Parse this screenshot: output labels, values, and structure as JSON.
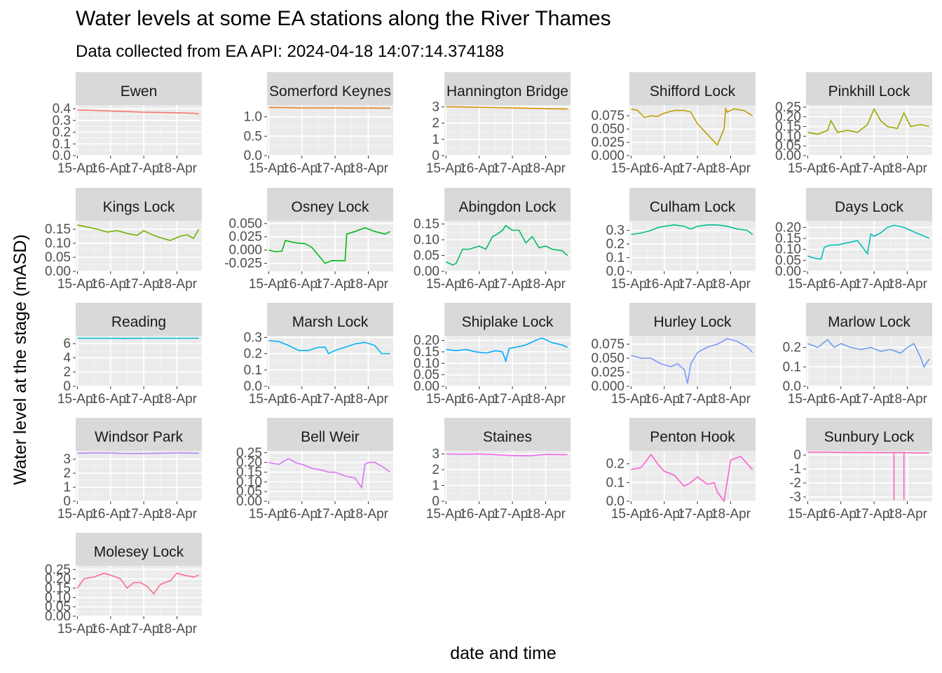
{
  "chart_data": {
    "type": "line",
    "title": "Water levels at some EA stations along the River Thames",
    "subtitle": "Data collected from EA API: 2024-04-18 14:07:14.374188",
    "xlabel": "date and time",
    "ylabel": "Water level at the stage (mASD)",
    "x_ticks": [
      "15-Apr",
      "16-Apr",
      "17-Apr",
      "18-Apr"
    ],
    "x_range_days": [
      14.95,
      18.75
    ],
    "legend": "none",
    "grid": true,
    "panels": [
      {
        "station": "Ewen",
        "color": "#F8766D",
        "ylim": [
          0,
          0.43
        ],
        "yticks": [
          "0.0",
          "0.1",
          "0.2",
          "0.3",
          "0.4"
        ],
        "ytick_values": [
          0,
          0.1,
          0.2,
          0.3,
          0.4
        ],
        "x": [
          15.0,
          15.5,
          16.0,
          16.5,
          17.0,
          17.5,
          18.0,
          18.5,
          18.66
        ],
        "y": [
          0.39,
          0.385,
          0.38,
          0.375,
          0.37,
          0.368,
          0.365,
          0.36,
          0.355
        ]
      },
      {
        "station": "Somerford Keynes",
        "color": "#E9842C",
        "ylim": [
          0,
          1.3
        ],
        "yticks": [
          "0.0",
          "0.5",
          "1.0"
        ],
        "ytick_values": [
          0,
          0.5,
          1.0
        ],
        "x": [
          15.0,
          15.5,
          16.0,
          16.5,
          17.0,
          17.5,
          18.0,
          18.66
        ],
        "y": [
          1.24,
          1.235,
          1.23,
          1.23,
          1.23,
          1.225,
          1.225,
          1.22
        ]
      },
      {
        "station": "Hannington Bridge",
        "color": "#D69100",
        "ylim": [
          0,
          3.1
        ],
        "yticks": [
          "0",
          "1",
          "2",
          "3"
        ],
        "ytick_values": [
          0,
          1,
          2,
          3
        ],
        "x": [
          15.0,
          15.5,
          16.0,
          16.5,
          17.0,
          17.5,
          18.0,
          18.66
        ],
        "y": [
          3.0,
          2.99,
          2.97,
          2.95,
          2.93,
          2.91,
          2.89,
          2.86
        ]
      },
      {
        "station": "Shifford Lock",
        "color": "#BC9D00",
        "ylim": [
          0,
          0.095
        ],
        "yticks": [
          "0.000",
          "0.025",
          "0.050",
          "0.075"
        ],
        "ytick_values": [
          0,
          0.025,
          0.05,
          0.075
        ],
        "x": [
          15.0,
          15.2,
          15.4,
          15.6,
          15.8,
          16.0,
          16.3,
          16.6,
          16.8,
          17.0,
          17.3,
          17.6,
          17.8,
          17.85,
          17.9,
          18.1,
          18.4,
          18.66
        ],
        "y": [
          0.088,
          0.085,
          0.072,
          0.075,
          0.074,
          0.08,
          0.085,
          0.085,
          0.082,
          0.06,
          0.04,
          0.02,
          0.05,
          0.088,
          0.082,
          0.088,
          0.085,
          0.075
        ]
      },
      {
        "station": "Pinkhill Lock",
        "color": "#9CA700",
        "ylim": [
          0,
          0.26
        ],
        "yticks": [
          "0.00",
          "0.05",
          "0.10",
          "0.15",
          "0.20",
          "0.25"
        ],
        "ytick_values": [
          0,
          0.05,
          0.1,
          0.15,
          0.2,
          0.25
        ],
        "x": [
          15.0,
          15.3,
          15.6,
          15.7,
          15.9,
          16.2,
          16.5,
          16.8,
          17.0,
          17.2,
          17.4,
          17.7,
          17.9,
          18.1,
          18.4,
          18.66
        ],
        "y": [
          0.12,
          0.11,
          0.13,
          0.18,
          0.12,
          0.13,
          0.12,
          0.16,
          0.24,
          0.18,
          0.15,
          0.14,
          0.22,
          0.15,
          0.16,
          0.15
        ]
      },
      {
        "station": "Kings Lock",
        "color": "#6FB000",
        "ylim": [
          0,
          0.18
        ],
        "yticks": [
          "0.00",
          "0.05",
          "0.10",
          "0.15"
        ],
        "ytick_values": [
          0,
          0.05,
          0.1,
          0.15
        ],
        "x": [
          15.0,
          15.3,
          15.6,
          15.9,
          16.2,
          16.5,
          16.8,
          17.0,
          17.3,
          17.5,
          17.8,
          18.1,
          18.3,
          18.5,
          18.66
        ],
        "y": [
          0.165,
          0.158,
          0.15,
          0.14,
          0.145,
          0.135,
          0.128,
          0.145,
          0.128,
          0.12,
          0.11,
          0.125,
          0.13,
          0.118,
          0.15
        ]
      },
      {
        "station": "Osney Lock",
        "color": "#00B813",
        "ylim": [
          -0.04,
          0.055
        ],
        "yticks": [
          "-0.025",
          "0.000",
          "0.025",
          "0.050"
        ],
        "ytick_values": [
          -0.025,
          0,
          0.025,
          0.05
        ],
        "x": [
          15.0,
          15.2,
          15.4,
          15.5,
          15.7,
          15.9,
          16.1,
          16.3,
          16.5,
          16.7,
          16.9,
          17.1,
          17.3,
          17.35,
          17.6,
          17.9,
          18.2,
          18.5,
          18.66
        ],
        "y": [
          0.0,
          -0.003,
          -0.002,
          0.018,
          0.015,
          0.013,
          0.012,
          0.005,
          -0.01,
          -0.025,
          -0.02,
          -0.02,
          -0.02,
          0.03,
          0.035,
          0.042,
          0.035,
          0.03,
          0.035
        ]
      },
      {
        "station": "Abingdon Lock",
        "color": "#00BD61",
        "ylim": [
          0,
          0.16
        ],
        "yticks": [
          "0.00",
          "0.05",
          "0.10",
          "0.15"
        ],
        "ytick_values": [
          0,
          0.05,
          0.1,
          0.15
        ],
        "x": [
          15.0,
          15.2,
          15.3,
          15.5,
          15.7,
          16.0,
          16.2,
          16.4,
          16.5,
          16.7,
          16.8,
          17.0,
          17.2,
          17.4,
          17.6,
          17.8,
          18.0,
          18.2,
          18.5,
          18.66
        ],
        "y": [
          0.03,
          0.02,
          0.025,
          0.07,
          0.07,
          0.08,
          0.07,
          0.11,
          0.115,
          0.13,
          0.145,
          0.13,
          0.13,
          0.09,
          0.11,
          0.075,
          0.08,
          0.07,
          0.065,
          0.05
        ]
      },
      {
        "station": "Culham Lock",
        "color": "#00C08E",
        "ylim": [
          0,
          0.37
        ],
        "yticks": [
          "0.0",
          "0.1",
          "0.2",
          "0.3"
        ],
        "ytick_values": [
          0,
          0.1,
          0.2,
          0.3
        ],
        "x": [
          15.0,
          15.3,
          15.6,
          15.8,
          16.0,
          16.3,
          16.6,
          16.8,
          17.0,
          17.3,
          17.6,
          17.9,
          18.2,
          18.5,
          18.66
        ],
        "y": [
          0.27,
          0.28,
          0.3,
          0.32,
          0.33,
          0.34,
          0.33,
          0.31,
          0.33,
          0.34,
          0.34,
          0.33,
          0.31,
          0.3,
          0.27
        ]
      },
      {
        "station": "Days Lock",
        "color": "#00C0B4",
        "ylim": [
          0,
          0.23
        ],
        "yticks": [
          "0.00",
          "0.05",
          "0.10",
          "0.15",
          "0.20"
        ],
        "ytick_values": [
          0,
          0.05,
          0.1,
          0.15,
          0.2
        ],
        "x": [
          15.0,
          15.2,
          15.4,
          15.5,
          15.7,
          15.9,
          16.2,
          16.5,
          16.7,
          16.8,
          16.9,
          17.0,
          17.2,
          17.4,
          17.6,
          17.9,
          18.2,
          18.5,
          18.66
        ],
        "y": [
          0.07,
          0.06,
          0.055,
          0.11,
          0.12,
          0.12,
          0.13,
          0.14,
          0.1,
          0.08,
          0.17,
          0.16,
          0.175,
          0.2,
          0.21,
          0.2,
          0.18,
          0.16,
          0.15
        ]
      },
      {
        "station": "Reading",
        "color": "#00BDD4",
        "ylim": [
          0,
          7.1
        ],
        "yticks": [
          "0",
          "2",
          "4",
          "6"
        ],
        "ytick_values": [
          0,
          2,
          4,
          6
        ],
        "x": [
          15.0,
          15.5,
          16.0,
          16.5,
          17.0,
          17.5,
          18.0,
          18.66
        ],
        "y": [
          6.75,
          6.75,
          6.75,
          6.74,
          6.75,
          6.75,
          6.75,
          6.75
        ]
      },
      {
        "station": "Marsh Lock",
        "color": "#00B5EE",
        "ylim": [
          0,
          0.31
        ],
        "yticks": [
          "0.0",
          "0.1",
          "0.2",
          "0.3"
        ],
        "ytick_values": [
          0,
          0.1,
          0.2,
          0.3
        ],
        "x": [
          15.0,
          15.3,
          15.6,
          15.9,
          16.2,
          16.5,
          16.7,
          16.8,
          17.0,
          17.3,
          17.6,
          17.9,
          18.2,
          18.4,
          18.66
        ],
        "y": [
          0.28,
          0.275,
          0.25,
          0.22,
          0.22,
          0.24,
          0.24,
          0.2,
          0.22,
          0.24,
          0.26,
          0.27,
          0.25,
          0.2,
          0.2
        ]
      },
      {
        "station": "Shiplake Lock",
        "color": "#00A7FF",
        "ylim": [
          0,
          0.22
        ],
        "yticks": [
          "0.00",
          "0.05",
          "0.10",
          "0.15",
          "0.20"
        ],
        "ytick_values": [
          0,
          0.05,
          0.1,
          0.15,
          0.2
        ],
        "x": [
          15.0,
          15.3,
          15.6,
          15.9,
          16.2,
          16.5,
          16.7,
          16.8,
          16.9,
          17.1,
          17.4,
          17.7,
          17.9,
          18.2,
          18.5,
          18.66
        ],
        "y": [
          0.16,
          0.155,
          0.16,
          0.15,
          0.145,
          0.155,
          0.15,
          0.11,
          0.165,
          0.17,
          0.18,
          0.2,
          0.21,
          0.19,
          0.18,
          0.17
        ]
      },
      {
        "station": "Hurley Lock",
        "color": "#7F96FF",
        "ylim": [
          0,
          0.09
        ],
        "yticks": [
          "0.000",
          "0.025",
          "0.050",
          "0.075"
        ],
        "ytick_values": [
          0,
          0.025,
          0.05,
          0.075
        ],
        "x": [
          15.0,
          15.3,
          15.6,
          15.9,
          16.2,
          16.4,
          16.6,
          16.7,
          16.8,
          17.0,
          17.3,
          17.6,
          17.9,
          18.2,
          18.5,
          18.66
        ],
        "y": [
          0.055,
          0.05,
          0.05,
          0.04,
          0.035,
          0.04,
          0.03,
          0.005,
          0.04,
          0.06,
          0.07,
          0.075,
          0.085,
          0.08,
          0.07,
          0.06
        ]
      },
      {
        "station": "Marlow Lock",
        "color": "#6B9DF0",
        "ylim": [
          0,
          0.26
        ],
        "yticks": [
          "0.0",
          "0.1",
          "0.2"
        ],
        "ytick_values": [
          0,
          0.1,
          0.2
        ],
        "x": [
          15.0,
          15.3,
          15.6,
          15.8,
          16.0,
          16.3,
          16.6,
          16.9,
          17.2,
          17.5,
          17.8,
          18.0,
          18.2,
          18.4,
          18.5,
          18.66
        ],
        "y": [
          0.22,
          0.2,
          0.24,
          0.2,
          0.22,
          0.2,
          0.19,
          0.2,
          0.18,
          0.19,
          0.17,
          0.2,
          0.22,
          0.15,
          0.1,
          0.14
        ]
      },
      {
        "station": "Windsor Park",
        "color": "#B385FF",
        "ylim": [
          0,
          3.6
        ],
        "yticks": [
          "0",
          "1",
          "2",
          "3"
        ],
        "ytick_values": [
          0,
          1,
          2,
          3
        ],
        "x": [
          15.0,
          15.5,
          16.0,
          16.5,
          17.0,
          17.5,
          18.0,
          18.66
        ],
        "y": [
          3.42,
          3.45,
          3.44,
          3.4,
          3.41,
          3.42,
          3.45,
          3.43
        ]
      },
      {
        "station": "Bell Weir",
        "color": "#DD71FA",
        "ylim": [
          0,
          0.26
        ],
        "yticks": [
          "0.00",
          "0.05",
          "0.10",
          "0.15",
          "0.20",
          "0.25"
        ],
        "ytick_values": [
          0,
          0.05,
          0.1,
          0.15,
          0.2,
          0.25
        ],
        "x": [
          15.0,
          15.3,
          15.6,
          15.8,
          16.0,
          16.3,
          16.6,
          16.8,
          17.0,
          17.3,
          17.6,
          17.8,
          17.9,
          18.0,
          18.2,
          18.5,
          18.66
        ],
        "y": [
          0.2,
          0.19,
          0.22,
          0.2,
          0.19,
          0.17,
          0.16,
          0.15,
          0.15,
          0.13,
          0.12,
          0.07,
          0.19,
          0.2,
          0.2,
          0.17,
          0.15
        ]
      },
      {
        "station": "Staines",
        "color": "#F066EA",
        "ylim": [
          0,
          3.2
        ],
        "yticks": [
          "0",
          "1",
          "2",
          "3"
        ],
        "ytick_values": [
          0,
          1,
          2,
          3
        ],
        "x": [
          15.0,
          15.5,
          16.0,
          16.5,
          17.0,
          17.5,
          18.0,
          18.66
        ],
        "y": [
          3.0,
          2.98,
          3.0,
          2.95,
          2.9,
          2.88,
          2.97,
          2.95
        ]
      },
      {
        "station": "Penton Hook",
        "color": "#FD61D1",
        "ylim": [
          0,
          0.27
        ],
        "yticks": [
          "0.0",
          "0.1",
          "0.2"
        ],
        "ytick_values": [
          0,
          0.1,
          0.2
        ],
        "x": [
          15.0,
          15.3,
          15.6,
          15.8,
          16.0,
          16.3,
          16.6,
          16.8,
          17.0,
          17.3,
          17.5,
          17.6,
          17.8,
          18.0,
          18.3,
          18.5,
          18.66
        ],
        "y": [
          0.17,
          0.18,
          0.25,
          0.2,
          0.16,
          0.14,
          0.08,
          0.1,
          0.13,
          0.09,
          0.1,
          0.05,
          0.0,
          0.22,
          0.24,
          0.2,
          0.17
        ]
      },
      {
        "station": "Sunbury  Lock",
        "color": "#FF62BC",
        "ylim": [
          -3.3,
          0.3
        ],
        "yticks": [
          "-3",
          "-2",
          "-1",
          "0"
        ],
        "ytick_values": [
          -3,
          -2,
          -1,
          0
        ],
        "x": [
          15.0,
          15.5,
          16.0,
          16.5,
          17.0,
          17.5,
          17.6,
          17.6,
          17.6,
          17.9,
          17.9,
          17.9,
          18.2,
          18.66
        ],
        "y": [
          0.2,
          0.2,
          0.18,
          0.18,
          0.17,
          0.17,
          0.17,
          -3.2,
          0.17,
          0.17,
          -3.2,
          0.17,
          0.15,
          0.14
        ]
      },
      {
        "station": "Molesey Lock",
        "color": "#FF6C91",
        "ylim": [
          0,
          0.27
        ],
        "yticks": [
          "0.00",
          "0.05",
          "0.10",
          "0.15",
          "0.20",
          "0.25"
        ],
        "ytick_values": [
          0,
          0.05,
          0.1,
          0.15,
          0.2,
          0.25
        ],
        "x": [
          15.0,
          15.2,
          15.5,
          15.8,
          16.0,
          16.3,
          16.5,
          16.7,
          16.9,
          17.1,
          17.3,
          17.5,
          17.8,
          18.0,
          18.2,
          18.5,
          18.66
        ],
        "y": [
          0.15,
          0.2,
          0.21,
          0.23,
          0.22,
          0.2,
          0.15,
          0.18,
          0.18,
          0.16,
          0.12,
          0.17,
          0.19,
          0.23,
          0.22,
          0.21,
          0.22
        ]
      }
    ]
  }
}
